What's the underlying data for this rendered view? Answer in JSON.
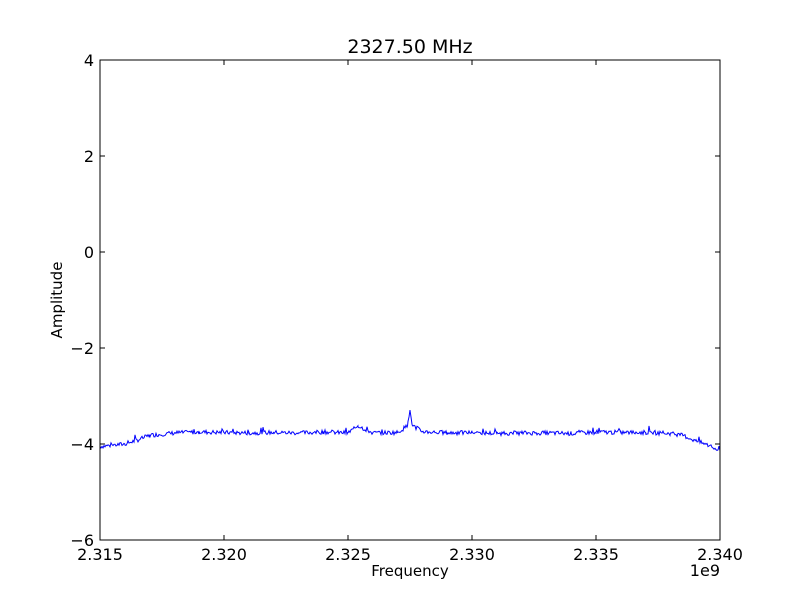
{
  "chart_data": {
    "type": "line",
    "title": "2327.50 MHz",
    "xlabel": "Frequency",
    "ylabel": "Amplitude",
    "x_offset_label": "1e9",
    "xlim": [
      2.315,
      2.34
    ],
    "ylim": [
      -6,
      4
    ],
    "x_tick_values": [
      2.315,
      2.32,
      2.325,
      2.33,
      2.335,
      2.34
    ],
    "x_tick_labels": [
      "2.315",
      "2.320",
      "2.325",
      "2.330",
      "2.335",
      "2.340"
    ],
    "y_tick_values": [
      4,
      2,
      0,
      -2,
      -4,
      -6
    ],
    "y_tick_labels": [
      "4",
      "2",
      "0",
      "−2",
      "−4",
      "−6"
    ],
    "grid": false,
    "line_color": "#0000ff",
    "series": [
      {
        "x": [
          2.315,
          2.316,
          2.3165,
          2.317,
          2.318,
          2.319,
          2.32,
          2.321,
          2.322,
          2.323,
          2.324,
          2.325,
          2.3254,
          2.326,
          2.327,
          2.3274,
          2.3275,
          2.3276,
          2.328,
          2.329,
          2.33,
          2.331,
          2.332,
          2.333,
          2.334,
          2.335,
          2.336,
          2.337,
          2.338,
          2.3385,
          2.339,
          2.3395,
          2.34
        ],
        "y": [
          -4.05,
          -4.0,
          -3.92,
          -3.82,
          -3.77,
          -3.75,
          -3.76,
          -3.77,
          -3.76,
          -3.77,
          -3.75,
          -3.77,
          -3.62,
          -3.77,
          -3.76,
          -3.62,
          -3.3,
          -3.62,
          -3.74,
          -3.77,
          -3.76,
          -3.78,
          -3.77,
          -3.77,
          -3.78,
          -3.75,
          -3.76,
          -3.76,
          -3.78,
          -3.82,
          -3.93,
          -4.02,
          -4.15
        ]
      }
    ]
  }
}
